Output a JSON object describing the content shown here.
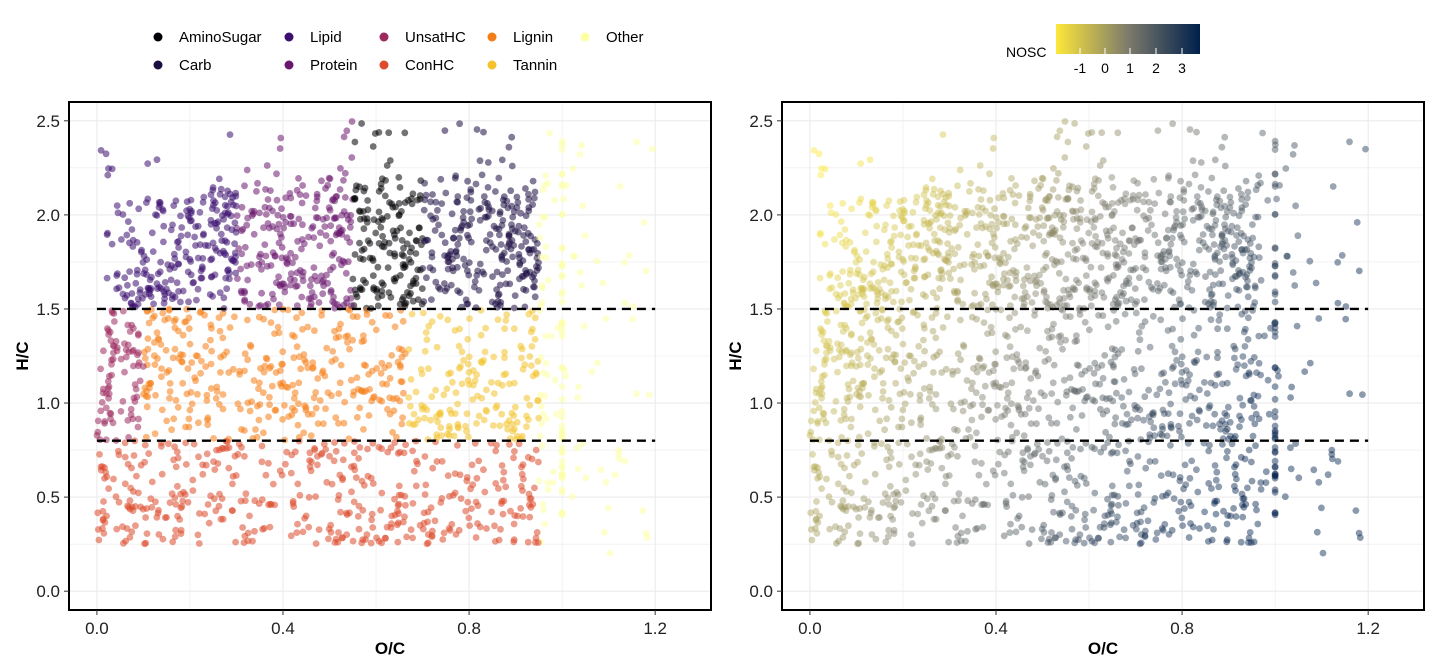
{
  "legend": {
    "classes": [
      {
        "name": "AminoSugar",
        "color": "#000004"
      },
      {
        "name": "Carb",
        "color": "#1b0c41"
      },
      {
        "name": "Lipid",
        "color": "#3b0f70"
      },
      {
        "name": "Protein",
        "color": "#6a176e"
      },
      {
        "name": "UnsatHC",
        "color": "#9c2a5e"
      },
      {
        "name": "ConHC",
        "color": "#dd4a2c"
      },
      {
        "name": "Lignin",
        "color": "#f57d15"
      },
      {
        "name": "Tannin",
        "color": "#f3c22c"
      },
      {
        "name": "Other",
        "color": "#fcffa4"
      }
    ]
  },
  "colorbar": {
    "title": "NOSC",
    "ticks": [
      "-1",
      "0",
      "1",
      "2",
      "3"
    ],
    "colors": [
      "#fde73a",
      "#7d7b6c",
      "#00204c"
    ]
  },
  "chart_data": [
    {
      "type": "scatter",
      "title": "",
      "xlabel": "O/C",
      "ylabel": "H/C",
      "xlim": [
        -0.06,
        1.32
      ],
      "ylim": [
        -0.1,
        2.6
      ],
      "xticks": [
        "0.0",
        "0.4",
        "0.8",
        "1.2"
      ],
      "yticks": [
        "0.0",
        "0.5",
        "1.0",
        "1.5",
        "2.0",
        "2.5"
      ],
      "grid": true,
      "color_by": "compound class",
      "reference_lines": [
        {
          "y": 1.5,
          "x_range": [
            0,
            1.2
          ],
          "style": "dashed"
        },
        {
          "y": 0.8,
          "x_range": [
            0,
            1.2
          ],
          "style": "dashed"
        }
      ],
      "class_regions": [
        {
          "class": "Lipid",
          "oc": [
            0.0,
            0.3
          ],
          "hc": [
            1.5,
            2.2
          ]
        },
        {
          "class": "Protein",
          "oc": [
            0.3,
            0.55
          ],
          "hc": [
            1.5,
            2.2
          ]
        },
        {
          "class": "AminoSugar",
          "oc": [
            0.55,
            0.7
          ],
          "hc": [
            1.5,
            2.2
          ]
        },
        {
          "class": "Carb",
          "oc": [
            0.7,
            1.0
          ],
          "hc": [
            1.5,
            2.2
          ]
        },
        {
          "class": "UnsatHC",
          "oc": [
            0.0,
            0.1
          ],
          "hc": [
            0.8,
            1.5
          ]
        },
        {
          "class": "Lignin",
          "oc": [
            0.1,
            0.67
          ],
          "hc": [
            0.8,
            1.5
          ]
        },
        {
          "class": "Tannin",
          "oc": [
            0.67,
            0.95
          ],
          "hc": [
            0.8,
            1.5
          ]
        },
        {
          "class": "ConHC",
          "oc": [
            0.0,
            0.8
          ],
          "hc": [
            0.2,
            0.8
          ]
        },
        {
          "class": "Other",
          "oc": [
            0.95,
            1.2
          ],
          "hc": [
            0.2,
            2.5
          ]
        }
      ]
    },
    {
      "type": "scatter",
      "title": "",
      "xlabel": "O/C",
      "ylabel": "H/C",
      "xlim": [
        -0.06,
        1.32
      ],
      "ylim": [
        -0.1,
        2.6
      ],
      "xticks": [
        "0.0",
        "0.4",
        "0.8",
        "1.2"
      ],
      "yticks": [
        "0.0",
        "0.5",
        "1.0",
        "1.5",
        "2.0",
        "2.5"
      ],
      "grid": true,
      "color_by": "NOSC",
      "color_range": [
        -1.5,
        3.5
      ],
      "reference_lines": [
        {
          "y": 1.5,
          "x_range": [
            0,
            1.2
          ],
          "style": "dashed"
        },
        {
          "y": 0.8,
          "x_range": [
            0,
            1.2
          ],
          "style": "dashed"
        }
      ]
    }
  ]
}
